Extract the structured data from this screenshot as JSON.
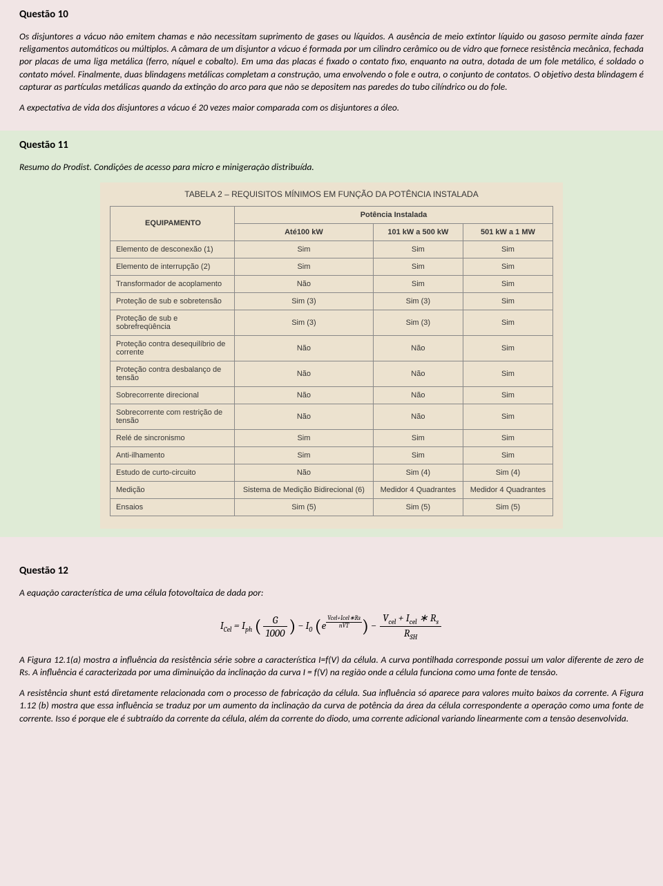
{
  "q10": {
    "heading": "Questão 10",
    "para1": "Os disjuntores a vácuo não emitem chamas e não necessitam suprimento de gases ou líquidos. A ausência de meio extintor líquido ou gasoso permite ainda fazer religamentos automáticos ou múltiplos. A câmara de um disjuntor a vácuo é formada por um cilindro cerâmico ou de vidro que fornece resistência mecânica, fechada por placas de uma liga metálica (ferro, níquel e cobalto). Em uma das placas é fixado o contato fixo, enquanto na outra, dotada de um fole metálico, é soldado o contato móvel. Finalmente, duas blindagens metálicas completam a construção, uma envolvendo o fole e outra, o conjunto de contatos. O objetivo desta blindagem é capturar as partículas metálicas quando da extinção do arco para que não se depositem nas paredes do tubo cilíndrico ou do fole.",
    "para2": "A expectativa de vida dos disjuntores a vácuo é 20 vezes maior comparada com os disjuntores a óleo."
  },
  "q11": {
    "heading": "Questão 11",
    "intro": "Resumo do Prodist. Condições de acesso para micro e minigeração distribuída.",
    "table": {
      "title": "TABELA 2 – REQUISITOS MÍNIMOS EM FUNÇÃO DA POTÊNCIA INSTALADA",
      "equip_header": "EQUIPAMENTO",
      "power_header": "Potência Instalada",
      "cols": [
        "Até100 kW",
        "101 kW a 500 kW",
        "501 kW a 1 MW"
      ],
      "rows": [
        {
          "label": "Elemento de desconexão (1)",
          "vals": [
            "Sim",
            "Sim",
            "Sim"
          ]
        },
        {
          "label": "Elemento de interrupção (2)",
          "vals": [
            "Sim",
            "Sim",
            "Sim"
          ]
        },
        {
          "label": "Transformador de acoplamento",
          "vals": [
            "Não",
            "Sim",
            "Sim"
          ]
        },
        {
          "label": "Proteção de sub e sobretensão",
          "vals": [
            "Sim (3)",
            "Sim (3)",
            "Sim"
          ]
        },
        {
          "label": "Proteção de sub e sobrefreqüência",
          "vals": [
            "Sim (3)",
            "Sim (3)",
            "Sim"
          ]
        },
        {
          "label": "Proteção contra desequilíbrio de corrente",
          "vals": [
            "Não",
            "Não",
            "Sim"
          ]
        },
        {
          "label": "Proteção contra desbalanço de tensão",
          "vals": [
            "Não",
            "Não",
            "Sim"
          ]
        },
        {
          "label": "Sobrecorrente direcional",
          "vals": [
            "Não",
            "Não",
            "Sim"
          ]
        },
        {
          "label": "Sobrecorrente com restrição de tensão",
          "vals": [
            "Não",
            "Não",
            "Sim"
          ]
        },
        {
          "label": "Relé de sincronismo",
          "vals": [
            "Sim",
            "Sim",
            "Sim"
          ]
        },
        {
          "label": "Anti-ilhamento",
          "vals": [
            "Sim",
            "Sim",
            "Sim"
          ]
        },
        {
          "label": "Estudo de curto-circuito",
          "vals": [
            "Não",
            "Sim (4)",
            "Sim (4)"
          ]
        },
        {
          "label": "Medição",
          "vals": [
            "Sistema de Medição Bidirecional (6)",
            "Medidor 4 Quadrantes",
            "Medidor 4 Quadrantes"
          ]
        },
        {
          "label": "Ensaios",
          "vals": [
            "Sim (5)",
            "Sim (5)",
            "Sim (5)"
          ]
        }
      ],
      "colors": {
        "bg": "#ece2cf",
        "border": "#888888",
        "text": "#333333"
      }
    }
  },
  "q12": {
    "heading": "Questão 12",
    "intro": "A equação característica de uma célula fotovoltaica de dada por:",
    "eq": {
      "lhs": "I",
      "lhs_sub": "Cel",
      "iph": "I",
      "iph_sub": "ph",
      "g_num": "G",
      "g_den": "1000",
      "i0": "I",
      "i0_sub": "0",
      "e": "e",
      "exp_num": "Vcel+Icel∗Rs",
      "exp_den": "nVT",
      "rnum_a": "V",
      "rnum_a_sub": "cel",
      "rnum_plus": " + ",
      "rnum_b": "I",
      "rnum_b_sub": "cel",
      "rnum_star": " ∗ ",
      "rnum_c": "R",
      "rnum_c_sub": "s",
      "rden": "R",
      "rden_sub": "SH"
    },
    "para1": "A Figura 12.1(a) mostra a influência da resistência série sobre a característica I=f(V) da célula. A curva pontilhada corresponde possui um valor diferente de zero de Rs. A influência é caracterizada por uma diminuição da inclinação da curva I = f(V) na região onde a célula funciona como uma fonte de tensão.",
    "para2": "A resistência shunt está diretamente relacionada com o processo de fabricação da célula. Sua influência só aparece para valores muito baixos da corrente. A Figura 1.12 (b) mostra que essa influência se traduz por um aumento da inclinação da curva de potência da área da célula correspondente a operação como uma fonte de corrente. Isso é porque ele é subtraído da corrente da célula, além da corrente do diodo, uma corrente adicional variando linearmente com a tensão desenvolvida."
  },
  "colors": {
    "page_bg": "#f1e5e5",
    "alt_bg": "#dfebd6",
    "text": "#000000"
  }
}
